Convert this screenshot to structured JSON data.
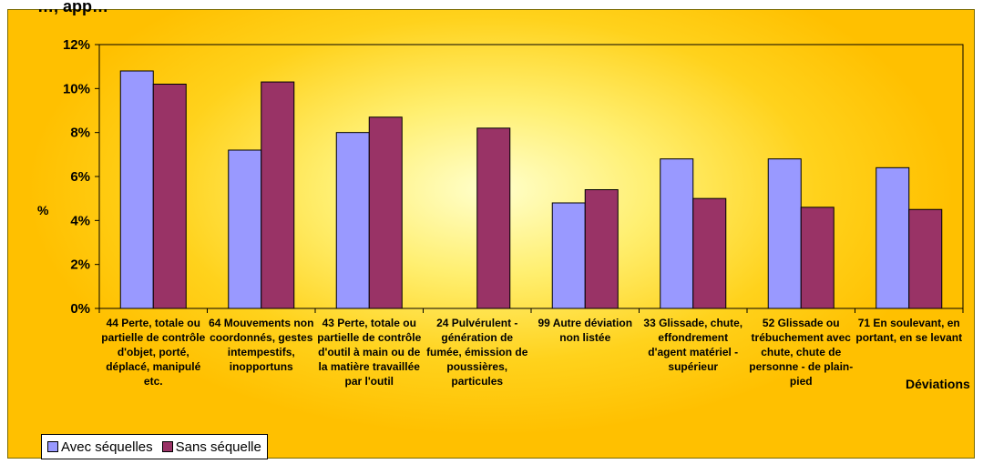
{
  "page_title": "…, app…",
  "chart_data": {
    "type": "bar",
    "ylabel": "%",
    "xlabel": "Déviations",
    "ylim": [
      0,
      12
    ],
    "ytick_labels": [
      "0%",
      "2%",
      "4%",
      "6%",
      "8%",
      "10%",
      "12%"
    ],
    "categories": [
      "44 Perte, totale ou partielle de contrôle d'objet, porté, déplacé, manipulé etc.",
      "64 Mouvements non coordonnés, gestes intempestifs, inopportuns",
      "43 Perte, totale ou partielle de contrôle d'outil à main ou de la matière travaillée par l'outil",
      "24 Pulvérulent - génération de fumée, émission de poussières, particules",
      "99 Autre déviation non listée",
      "33 Glissade, chute, effondrement d'agent matériel - supérieur",
      "52 Glissade ou trébuchement avec chute, chute de personne - de plain-pied",
      "71 En soulevant, en portant, en se levant"
    ],
    "series": [
      {
        "name": "Avec séquelles",
        "color": "#9999ff",
        "values": [
          10.8,
          7.2,
          8.0,
          0,
          4.8,
          6.8,
          6.8,
          6.4
        ]
      },
      {
        "name": "Sans séquelle",
        "color": "#993366",
        "values": [
          10.2,
          10.3,
          8.7,
          8.2,
          5.4,
          5.0,
          4.6,
          4.5
        ]
      }
    ],
    "grid": false,
    "legend_position": "bottom-left"
  }
}
